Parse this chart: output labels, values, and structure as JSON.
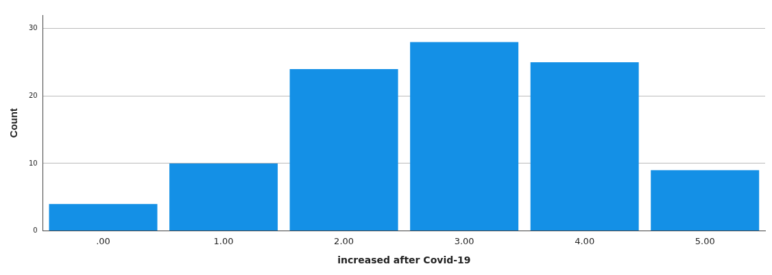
{
  "chart_data": {
    "type": "bar",
    "xlabel": "increased after Covid-19",
    "ylabel": "Count",
    "categories": [
      ".00",
      "1.00",
      "2.00",
      "3.00",
      "4.00",
      "5.00"
    ],
    "values": [
      4,
      10,
      24,
      28,
      25,
      9
    ],
    "color": "#1490e6",
    "ylim": [
      0,
      32
    ],
    "yticks": [
      0,
      10,
      20,
      30
    ],
    "grid": "y",
    "legend": false
  }
}
